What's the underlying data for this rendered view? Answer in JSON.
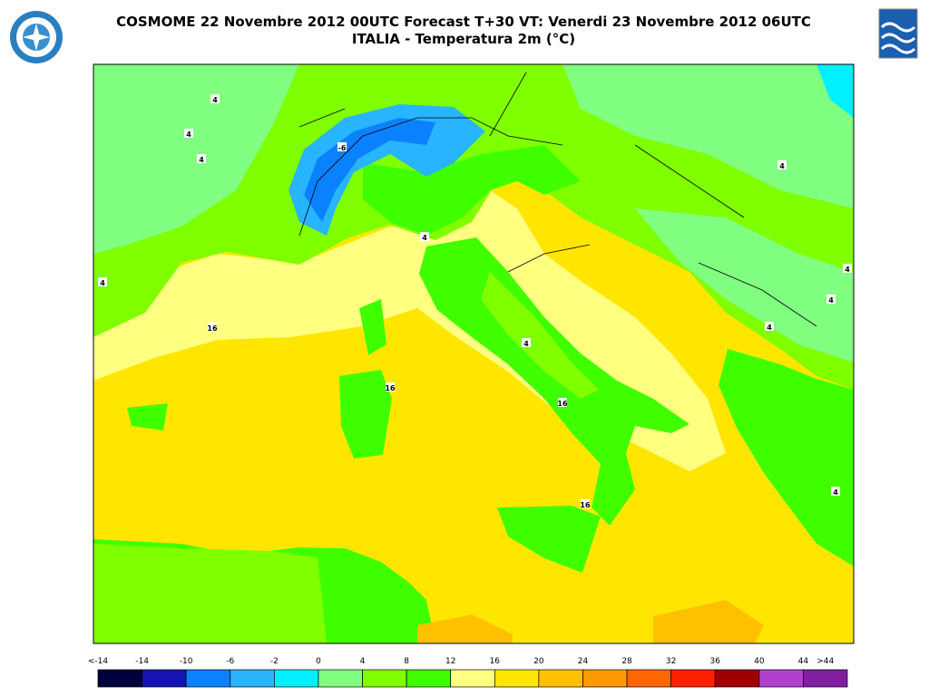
{
  "header": {
    "title": "COSMOME 22 Novembre 2012 00UTC Forecast T+30 VT: Venerdi 23 Novembre 2012 06UTC",
    "subtitle": "ITALIA - Temperatura 2m (°C)"
  },
  "map": {
    "contour_labels": [
      "4",
      "4",
      "4",
      "-6",
      "4",
      "4",
      "16",
      "4",
      "16",
      "16",
      "4",
      "4",
      "4",
      "4",
      "16",
      "4"
    ]
  },
  "colorbar": {
    "labels": [
      "<-14",
      "-14",
      "-10",
      "-6",
      "-2",
      "0",
      "4",
      "8",
      "12",
      "16",
      "20",
      "24",
      "28",
      "32",
      "36",
      "40",
      "44",
      ">44"
    ],
    "colors": [
      "#00003c",
      "#1414b4",
      "#0a82ff",
      "#28b4ff",
      "#00f0ff",
      "#80ff80",
      "#80ff00",
      "#40ff00",
      "#ffff80",
      "#ffe600",
      "#ffc000",
      "#ff9900",
      "#ff6600",
      "#ff2000",
      "#a00000",
      "#b040d0",
      "#8020a0"
    ]
  }
}
